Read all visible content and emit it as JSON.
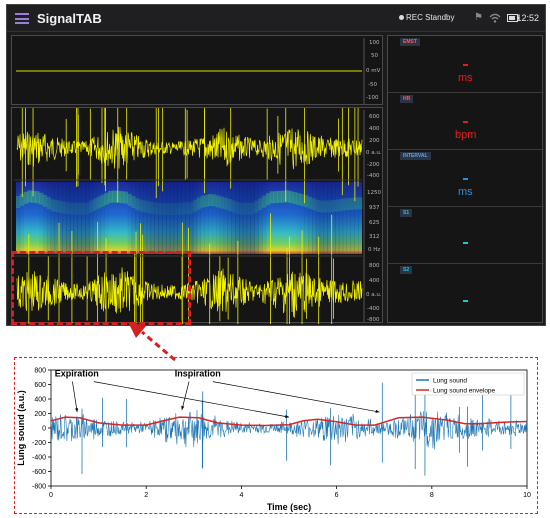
{
  "statusbar": {
    "app_title": "SignalTAB",
    "rec_status": "REC Standby",
    "time": "12:52",
    "icons": [
      "menu-icon",
      "bell-icon",
      "wifi-icon",
      "battery-icon"
    ]
  },
  "ecg_panel": {
    "y_ticks": [
      "100",
      "50",
      "0 mV",
      "-50",
      "-100"
    ]
  },
  "sound_panel": {
    "y_ticks": [
      "600",
      "400",
      "200",
      "0 a.u.",
      "-200",
      "-400"
    ]
  },
  "spectrogram_panel": {
    "y_ticks": [
      "1250",
      "937",
      "625",
      "312",
      "0 Hz"
    ]
  },
  "zoom_panel": {
    "y_ticks": [
      "800",
      "400",
      "0 a.u.",
      "-400",
      "-800"
    ]
  },
  "metrics": [
    {
      "title": "EMST",
      "value": "-",
      "unit": "ms",
      "color": "#e0201c"
    },
    {
      "title": "HR",
      "value": "-",
      "unit": "bpm",
      "color": "#e0201c"
    },
    {
      "title": "INTERVAL",
      "value": "-",
      "unit": "ms",
      "color": "#2d8fe0"
    },
    {
      "title": "S1",
      "value": "-",
      "unit": "",
      "color": "#19c9d6"
    },
    {
      "title": "S2",
      "value": "-",
      "unit": "",
      "color": "#19c9d6"
    }
  ],
  "colors": {
    "signal": "#f2f200",
    "highlight": "#d42020",
    "chart_line": "#1f77b4",
    "chart_envelope": "#d62728"
  },
  "chart_data": {
    "type": "line",
    "xlabel": "Time (sec)",
    "ylabel": "Lung sound (a.u.)",
    "xlim": [
      0,
      10
    ],
    "ylim": [
      -800,
      800
    ],
    "x_ticks": [
      "0",
      "2",
      "4",
      "6",
      "8",
      "10"
    ],
    "y_ticks": [
      "800",
      "600",
      "400",
      "200",
      "0",
      "-200",
      "-400",
      "-600",
      "-800"
    ],
    "legend_position": "top-right",
    "series": [
      {
        "name": "Lung sound",
        "color": "#1f77b4",
        "style": "noisy-signal",
        "x": [
          0,
          0.5,
          1.0,
          1.5,
          2.0,
          2.5,
          3.0,
          3.5,
          4.0,
          4.5,
          5.0,
          5.5,
          6.0,
          6.5,
          7.0,
          7.5,
          8.0,
          8.5,
          9.0,
          9.5,
          10
        ],
        "y": [
          180,
          220,
          150,
          80,
          80,
          200,
          260,
          150,
          80,
          70,
          90,
          150,
          240,
          140,
          90,
          170,
          270,
          180,
          120,
          110,
          120
        ]
      },
      {
        "name": "Lung sound envelope",
        "color": "#d62728",
        "x": [
          0,
          0.3,
          0.6,
          1.0,
          1.5,
          2.0,
          2.3,
          2.7,
          3.1,
          3.5,
          4.0,
          4.5,
          5.0,
          5.3,
          5.6,
          6.0,
          6.4,
          6.8,
          7.0,
          7.3,
          7.8,
          8.3,
          8.7,
          9.0,
          9.5,
          10
        ],
        "y": [
          100,
          150,
          140,
          70,
          40,
          40,
          90,
          150,
          140,
          70,
          40,
          35,
          45,
          100,
          120,
          85,
          40,
          40,
          80,
          140,
          150,
          110,
          60,
          60,
          80,
          90
        ]
      }
    ],
    "annotations": [
      {
        "text": "Expiration",
        "x": 0.5,
        "y": 710
      },
      {
        "text": "Inspiration",
        "x": 2.6,
        "y": 710
      }
    ]
  }
}
